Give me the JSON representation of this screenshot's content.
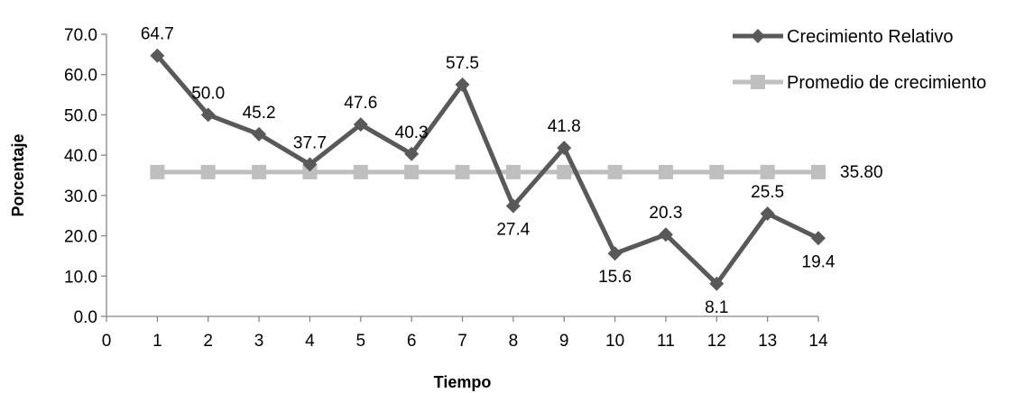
{
  "chart_data": {
    "type": "line",
    "xlabel": "Tiempo",
    "ylabel": "Porcentaje",
    "xlim": [
      0,
      14
    ],
    "ylim": [
      0,
      70
    ],
    "x_ticks": [
      "0",
      "1",
      "2",
      "3",
      "4",
      "5",
      "6",
      "7",
      "8",
      "9",
      "10",
      "11",
      "12",
      "13",
      "14"
    ],
    "y_ticks": [
      "0.0",
      "10.0",
      "20.0",
      "30.0",
      "40.0",
      "50.0",
      "60.0",
      "70.0"
    ],
    "grid": false,
    "legend_position": "top-right",
    "series": [
      {
        "name": "Crecimiento Relativo",
        "color": "#595959",
        "marker": "diamond",
        "x": [
          1,
          2,
          3,
          4,
          5,
          6,
          7,
          8,
          9,
          10,
          11,
          12,
          13,
          14
        ],
        "y": [
          64.7,
          50.0,
          45.2,
          37.7,
          47.6,
          40.3,
          57.5,
          27.4,
          41.8,
          15.6,
          20.3,
          8.1,
          25.5,
          19.4
        ],
        "labels": [
          "64.7",
          "50.0",
          "45.2",
          "37.7",
          "47.6",
          "40.3",
          "57.5",
          "27.4",
          "41.8",
          "15.6",
          "20.3",
          "8.1",
          "25.5",
          "19.4"
        ]
      },
      {
        "name": "Promedio de crecimiento",
        "color": "#bfbfbf",
        "marker": "square",
        "x": [
          1,
          2,
          3,
          4,
          5,
          6,
          7,
          8,
          9,
          10,
          11,
          12,
          13,
          14
        ],
        "y": [
          35.8,
          35.8,
          35.8,
          35.8,
          35.8,
          35.8,
          35.8,
          35.8,
          35.8,
          35.8,
          35.8,
          35.8,
          35.8,
          35.8
        ],
        "end_label": "35.80"
      }
    ]
  }
}
